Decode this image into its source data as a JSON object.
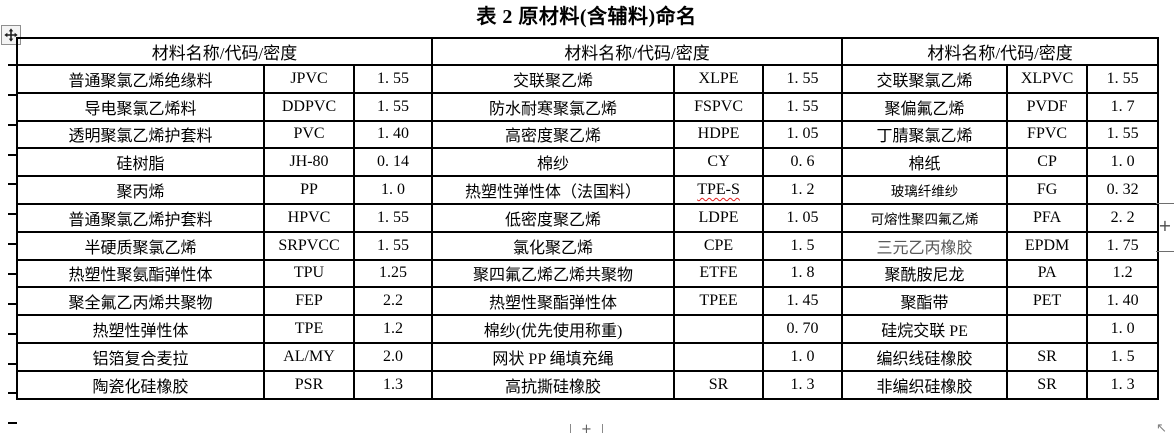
{
  "page": {
    "background": "#ffffff",
    "text_color": "#000000",
    "border_color": "#000000",
    "spellcheck_color": "#e02020"
  },
  "title": "表 2 原材料(含辅料)命名",
  "icons": {
    "move_handle": "move-icon",
    "right_plus": "+",
    "bottom_plus": "+",
    "corner_cursor": "↖"
  },
  "table": {
    "header_cells": [
      "材料名称/代码/密度",
      "材料名称/代码/密度",
      "材料名称/代码/密度"
    ],
    "rows": [
      {
        "cells": [
          {
            "name": "普通聚氯乙烯绝缘料",
            "code": "JPVC",
            "density": "1. 55"
          },
          {
            "name": "交联聚乙烯",
            "code": "XLPE",
            "density": "1. 55"
          },
          {
            "name": "交联聚氯乙烯",
            "code": "XLPVC",
            "density": "1. 55"
          }
        ]
      },
      {
        "cells": [
          {
            "name": "导电聚氯乙烯料",
            "code": "DDPVC",
            "density": "1. 55"
          },
          {
            "name": "防水耐寒聚氯乙烯",
            "code": "FSPVC",
            "density": "1. 55"
          },
          {
            "name": "聚偏氟乙烯",
            "code": "PVDF",
            "density": "1. 7"
          }
        ]
      },
      {
        "cells": [
          {
            "name": "透明聚氯乙烯护套料",
            "code": "PVC",
            "density": "1. 40"
          },
          {
            "name": "高密度聚乙烯",
            "code": "HDPE",
            "density": "1. 05"
          },
          {
            "name": "丁腈聚氯乙烯",
            "code": "FPVC",
            "density": "1. 55"
          }
        ]
      },
      {
        "cells": [
          {
            "name": "硅树脂",
            "code": "JH-80",
            "density": "0. 14"
          },
          {
            "name": "棉纱",
            "code": "CY",
            "density": "0. 6"
          },
          {
            "name": "棉纸",
            "code": "CP",
            "density": "1. 0"
          }
        ]
      },
      {
        "cells": [
          {
            "name": "聚丙烯",
            "code": "PP",
            "density": "1. 0"
          },
          {
            "name": "热塑性弹性体（法国料）",
            "code": "TPE-S",
            "density": "1. 2",
            "misspelled": true
          },
          {
            "name": "玻璃纤维纱",
            "code": "FG",
            "density": "0. 32",
            "small": true
          }
        ]
      },
      {
        "cells": [
          {
            "name": "普通聚氯乙烯护套料",
            "code": "HPVC",
            "density": "1. 55"
          },
          {
            "name": "低密度聚乙烯",
            "code": "LDPE",
            "density": "1. 05"
          },
          {
            "name": "可熔性聚四氟乙烯",
            "code": "PFA",
            "density": "2. 2",
            "small": true
          }
        ]
      },
      {
        "cells": [
          {
            "name": "半硬质聚氯乙烯",
            "code": "SRPVCC",
            "density": "1. 55"
          },
          {
            "name": "氯化聚乙烯",
            "code": "CPE",
            "density": "1. 5"
          },
          {
            "name": "三元乙丙橡胶",
            "code": "EPDM",
            "density": "1. 75",
            "light": true
          }
        ]
      },
      {
        "cells": [
          {
            "name": "热塑性聚氨酯弹性体",
            "code": "TPU",
            "density": "1.25"
          },
          {
            "name": "聚四氟乙烯乙烯共聚物",
            "code": "ETFE",
            "density": "1. 8"
          },
          {
            "name": "聚酰胺尼龙",
            "code": "PA",
            "density": "1.2"
          }
        ]
      },
      {
        "cells": [
          {
            "name": "聚全氟乙丙烯共聚物",
            "code": "FEP",
            "density": "2.2"
          },
          {
            "name": "热塑性聚酯弹性体",
            "code": "TPEE",
            "density": "1. 45"
          },
          {
            "name": "聚酯带",
            "code": "PET",
            "density": "1. 40"
          }
        ]
      },
      {
        "cells": [
          {
            "name": "热塑性弹性体",
            "code": "TPE",
            "density": "1.2"
          },
          {
            "name": "棉纱(优先使用称重)",
            "code": "",
            "density": "0. 70"
          },
          {
            "name": "硅烷交联 PE",
            "code": "",
            "density": "1. 0"
          }
        ]
      },
      {
        "cells": [
          {
            "name": "铝箔复合麦拉",
            "code": "AL/MY",
            "density": "2.0"
          },
          {
            "name": "网状 PP 绳填充绳",
            "code": "",
            "density": "1. 0"
          },
          {
            "name": "编织线硅橡胶",
            "code": "SR",
            "density": "1. 5"
          }
        ]
      },
      {
        "cells": [
          {
            "name": "陶瓷化硅橡胶",
            "code": "PSR",
            "density": "1.3"
          },
          {
            "name": "高抗撕硅橡胶",
            "code": "SR",
            "density": "1. 3"
          },
          {
            "name": "非编织硅橡胶",
            "code": "SR",
            "density": "1. 3"
          }
        ]
      }
    ]
  }
}
